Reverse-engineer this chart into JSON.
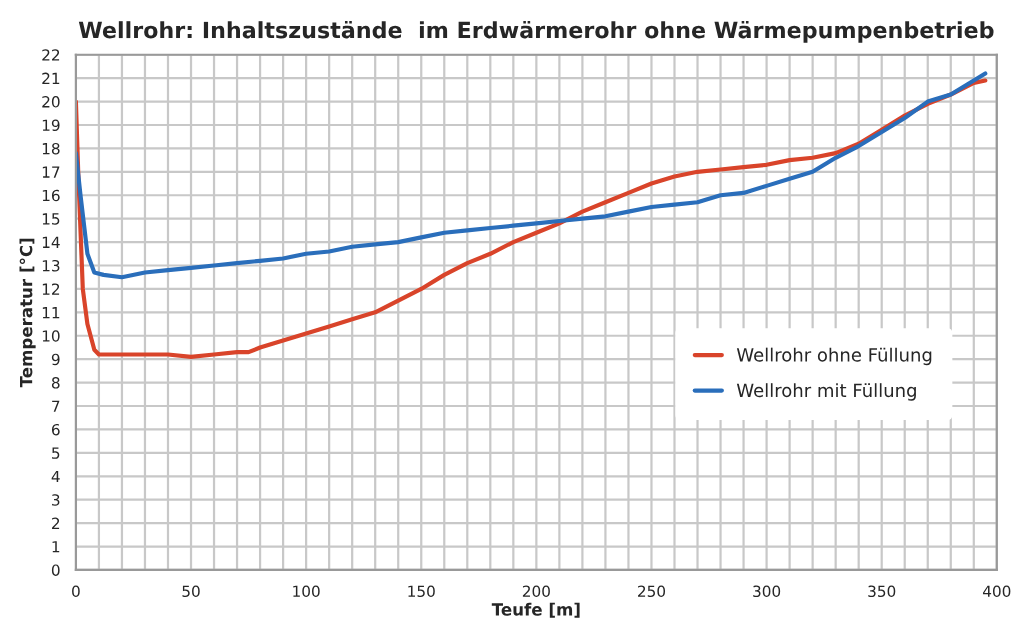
{
  "chart_data": {
    "type": "line",
    "title": "Wellrohr: Inhaltszustände  im Erdwärmerohr ohne Wärmepumpenbetrieb",
    "xlabel": "Teufe [m]",
    "ylabel": "Temperatur [°C]",
    "xlim": [
      0,
      400
    ],
    "ylim": [
      0,
      22
    ],
    "xticks": [
      0,
      {
        "value": 10,
        "label": null
      },
      {
        "value": 20,
        "label": null
      },
      {
        "value": 30,
        "label": null
      },
      {
        "value": 40,
        "label": null
      },
      50,
      {
        "value": 60,
        "label": null
      },
      {
        "value": 70,
        "label": null
      },
      {
        "value": 80,
        "label": null
      },
      {
        "value": 90,
        "label": null
      },
      100,
      {
        "value": 110,
        "label": null
      },
      {
        "value": 120,
        "label": null
      },
      {
        "value": 130,
        "label": null
      },
      {
        "value": 140,
        "label": null
      },
      150,
      {
        "value": 160,
        "label": null
      },
      {
        "value": 170,
        "label": null
      },
      {
        "value": 180,
        "label": null
      },
      {
        "value": 190,
        "label": null
      },
      200,
      {
        "value": 210,
        "label": null
      },
      {
        "value": 220,
        "label": null
      },
      {
        "value": 230,
        "label": null
      },
      {
        "value": 240,
        "label": null
      },
      250,
      {
        "value": 260,
        "label": null
      },
      {
        "value": 270,
        "label": null
      },
      {
        "value": 280,
        "label": null
      },
      {
        "value": 290,
        "label": null
      },
      300,
      {
        "value": 310,
        "label": null
      },
      {
        "value": 320,
        "label": null
      },
      {
        "value": 330,
        "label": null
      },
      {
        "value": 340,
        "label": null
      },
      350,
      {
        "value": 360,
        "label": null
      },
      {
        "value": 370,
        "label": null
      },
      {
        "value": 380,
        "label": null
      },
      {
        "value": 390,
        "label": null
      },
      400
    ],
    "yticks": [
      0,
      1,
      2,
      3,
      4,
      5,
      6,
      7,
      8,
      9,
      10,
      11,
      12,
      13,
      14,
      15,
      16,
      17,
      18,
      19,
      20,
      21,
      22
    ],
    "grid": true,
    "legend": "right",
    "line_style": "solid",
    "series": [
      {
        "name": "Wellrohr ohne Füllung",
        "color": "#d9442a",
        "x": [
          0,
          1,
          3,
          5,
          8,
          10,
          20,
          30,
          40,
          50,
          60,
          70,
          75,
          80,
          90,
          100,
          110,
          120,
          130,
          140,
          150,
          160,
          170,
          180,
          190,
          200,
          210,
          220,
          230,
          240,
          250,
          260,
          270,
          280,
          290,
          300,
          310,
          320,
          330,
          340,
          350,
          360,
          370,
          380,
          390,
          395
        ],
        "values": [
          20,
          17,
          12,
          10.5,
          9.4,
          9.2,
          9.2,
          9.2,
          9.2,
          9.1,
          9.2,
          9.3,
          9.3,
          9.5,
          9.8,
          10.1,
          10.4,
          10.7,
          11,
          11.5,
          12,
          12.6,
          13.1,
          13.5,
          14,
          14.4,
          14.8,
          15.3,
          15.7,
          16.1,
          16.5,
          16.8,
          17,
          17.1,
          17.2,
          17.3,
          17.5,
          17.6,
          17.8,
          18.2,
          18.8,
          19.4,
          19.9,
          20.3,
          20.8,
          20.9
        ]
      },
      {
        "name": "Wellrohr mit Füllung",
        "color": "#2a6ebb",
        "x": [
          0,
          2,
          5,
          8,
          12,
          20,
          30,
          40,
          50,
          60,
          70,
          80,
          90,
          100,
          110,
          120,
          130,
          140,
          150,
          160,
          170,
          180,
          190,
          200,
          210,
          220,
          230,
          240,
          250,
          260,
          270,
          280,
          290,
          300,
          310,
          320,
          330,
          340,
          350,
          360,
          370,
          380,
          390,
          395
        ],
        "values": [
          17.8,
          16,
          13.5,
          12.7,
          12.6,
          12.5,
          12.7,
          12.8,
          12.9,
          13,
          13.1,
          13.2,
          13.3,
          13.5,
          13.6,
          13.8,
          13.9,
          14,
          14.2,
          14.4,
          14.5,
          14.6,
          14.7,
          14.8,
          14.9,
          15,
          15.1,
          15.3,
          15.5,
          15.6,
          15.7,
          16,
          16.1,
          16.4,
          16.7,
          17,
          17.6,
          18.1,
          18.7,
          19.3,
          20,
          20.3,
          20.9,
          21.2
        ]
      }
    ]
  }
}
